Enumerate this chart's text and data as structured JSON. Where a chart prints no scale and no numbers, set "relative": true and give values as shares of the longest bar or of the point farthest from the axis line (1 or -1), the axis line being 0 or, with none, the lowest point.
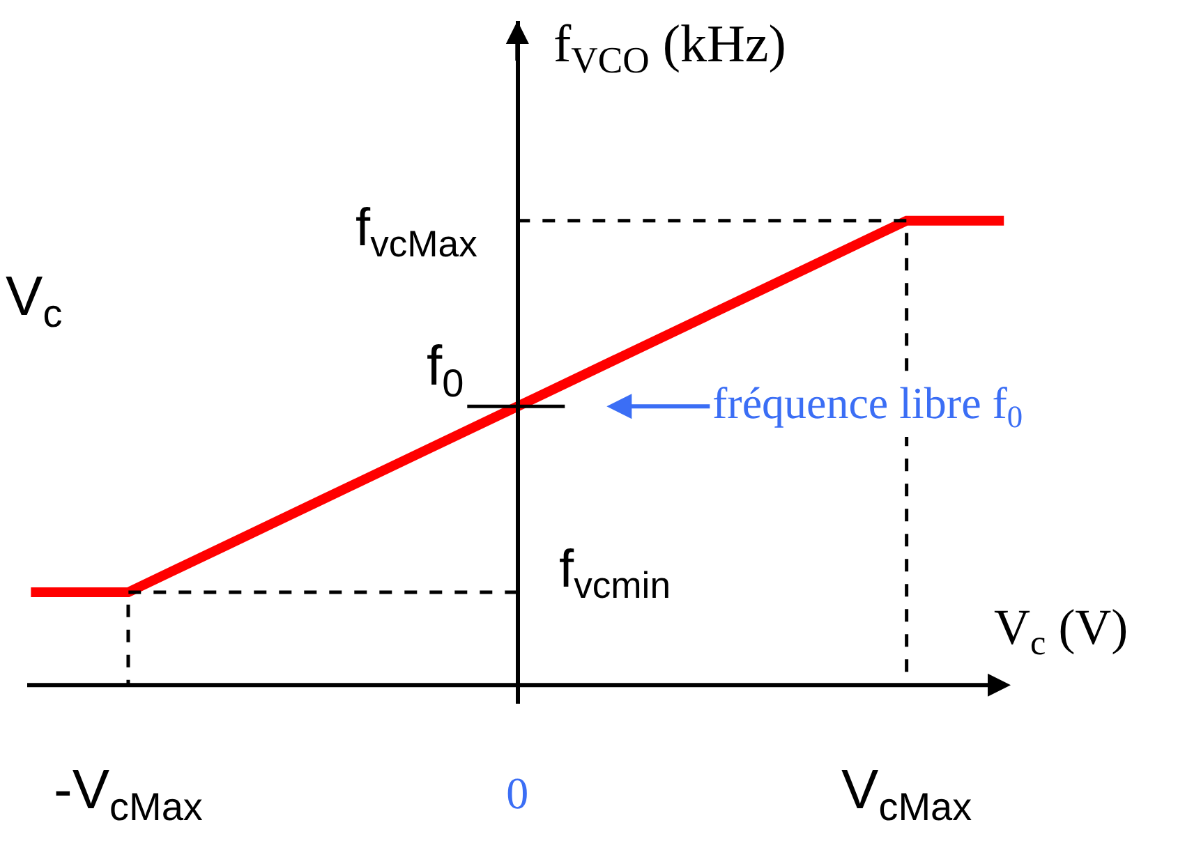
{
  "chart_data": {
    "type": "line",
    "relative": true,
    "xlabel": "V$_{c}$ (V)",
    "ylabel": "f$_{VCO}$ (kHz)",
    "categories": [
      null,
      "-V$_{cMax}$",
      null,
      null,
      null,
      "0",
      null,
      null,
      null,
      "V$_{cMax}$",
      null
    ],
    "series": [
      {
        "color": "#ff0000",
        "values": [
          0.2,
          0.2,
          0.3,
          0.4,
          0.5,
          0.6,
          0.7,
          0.8,
          0.9,
          1,
          1
        ]
      },
      {
        "color": "#000000",
        "line_style": "dashed",
        "x": [
          "0",
          "V$_{cMax}$",
          "V$_{cMax}$"
        ],
        "values": [
          1,
          1,
          0
        ]
      },
      {
        "color": "#000000",
        "line_style": "dashed",
        "x": [
          "0",
          "-V$_{cMax}$",
          "-V$_{cMax}$"
        ],
        "values": [
          0.2,
          0.2,
          0
        ]
      }
    ],
    "annotations": [
      {
        "text": "f$_{vcMax}$",
        "x": "0",
        "y": 1
      },
      {
        "text": "f$_{0}$",
        "x": "0",
        "y": 0.6
      },
      {
        "text": "f$_{vcmin}$",
        "x": "0",
        "y": 0.2
      },
      "fréquence libre f$_{0}$",
      "V$_{c}$"
    ]
  }
}
